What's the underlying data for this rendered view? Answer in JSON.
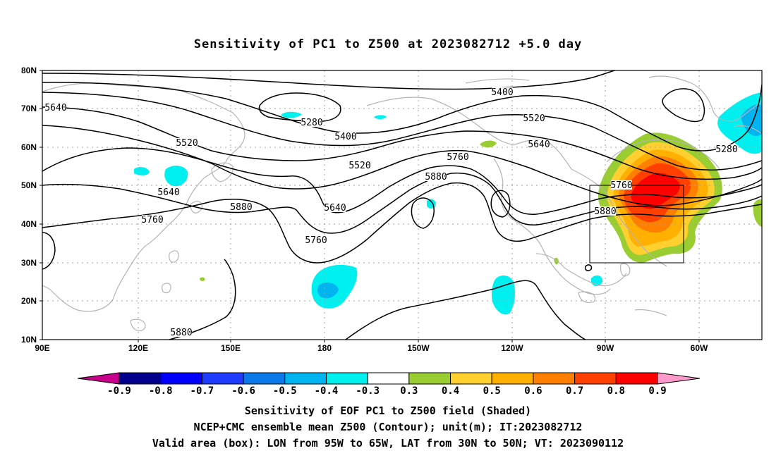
{
  "title": "Sensitivity of PC1 to Z500 at 2023082712 +5.0 day",
  "lat_labels": [
    "80N",
    "70N",
    "60N",
    "50N",
    "40N",
    "30N",
    "20N",
    "10N"
  ],
  "lon_labels": [
    "90E",
    "120E",
    "150E",
    "180",
    "150W",
    "120W",
    "90W",
    "60W"
  ],
  "contour_labels": {
    "c5640_w": "5640",
    "c5280_n": "5280",
    "c5400_a": "5400",
    "c5400_b": "5400",
    "c5520_a": "5520",
    "c5520_b": "5520",
    "c5520_c": "5520",
    "c5640_a": "5640",
    "c5640_b": "5640",
    "c5640_c": "5640",
    "c5760_a": "5760",
    "c5760_b": "5760",
    "c5760_c": "5760",
    "c5760_d": "5760",
    "c5880_a": "5880",
    "c5880_b": "5880",
    "c5880_c": "5880",
    "c5880_d": "5880",
    "c5280_e": "5280"
  },
  "colorbar": {
    "labels": [
      "-0.9",
      "-0.8",
      "-0.7",
      "-0.6",
      "-0.5",
      "-0.4",
      "-0.3",
      "0.3",
      "0.4",
      "0.5",
      "0.6",
      "0.7",
      "0.8",
      "0.9"
    ],
    "colors": [
      "#00008c",
      "#0000ff",
      "#1e3cff",
      "#0a78e6",
      "#00b4f0",
      "#00f0f0",
      "#ffffff",
      "#9acd32",
      "#ffd030",
      "#ffb000",
      "#ff8000",
      "#ff4000",
      "#ff0000"
    ],
    "under_color": "#c8008c",
    "over_color": "#ff99cc"
  },
  "caption": {
    "line1": "Sensitivity of EOF PC1 to Z500 field (Shaded)",
    "line2": "NCEP+CMC ensemble mean Z500 (Contour); unit(m); IT:2023082712",
    "line3": "Valid area (box): LON from 95W to 65W, LAT from 30N to 50N; VT: 2023090112"
  }
}
